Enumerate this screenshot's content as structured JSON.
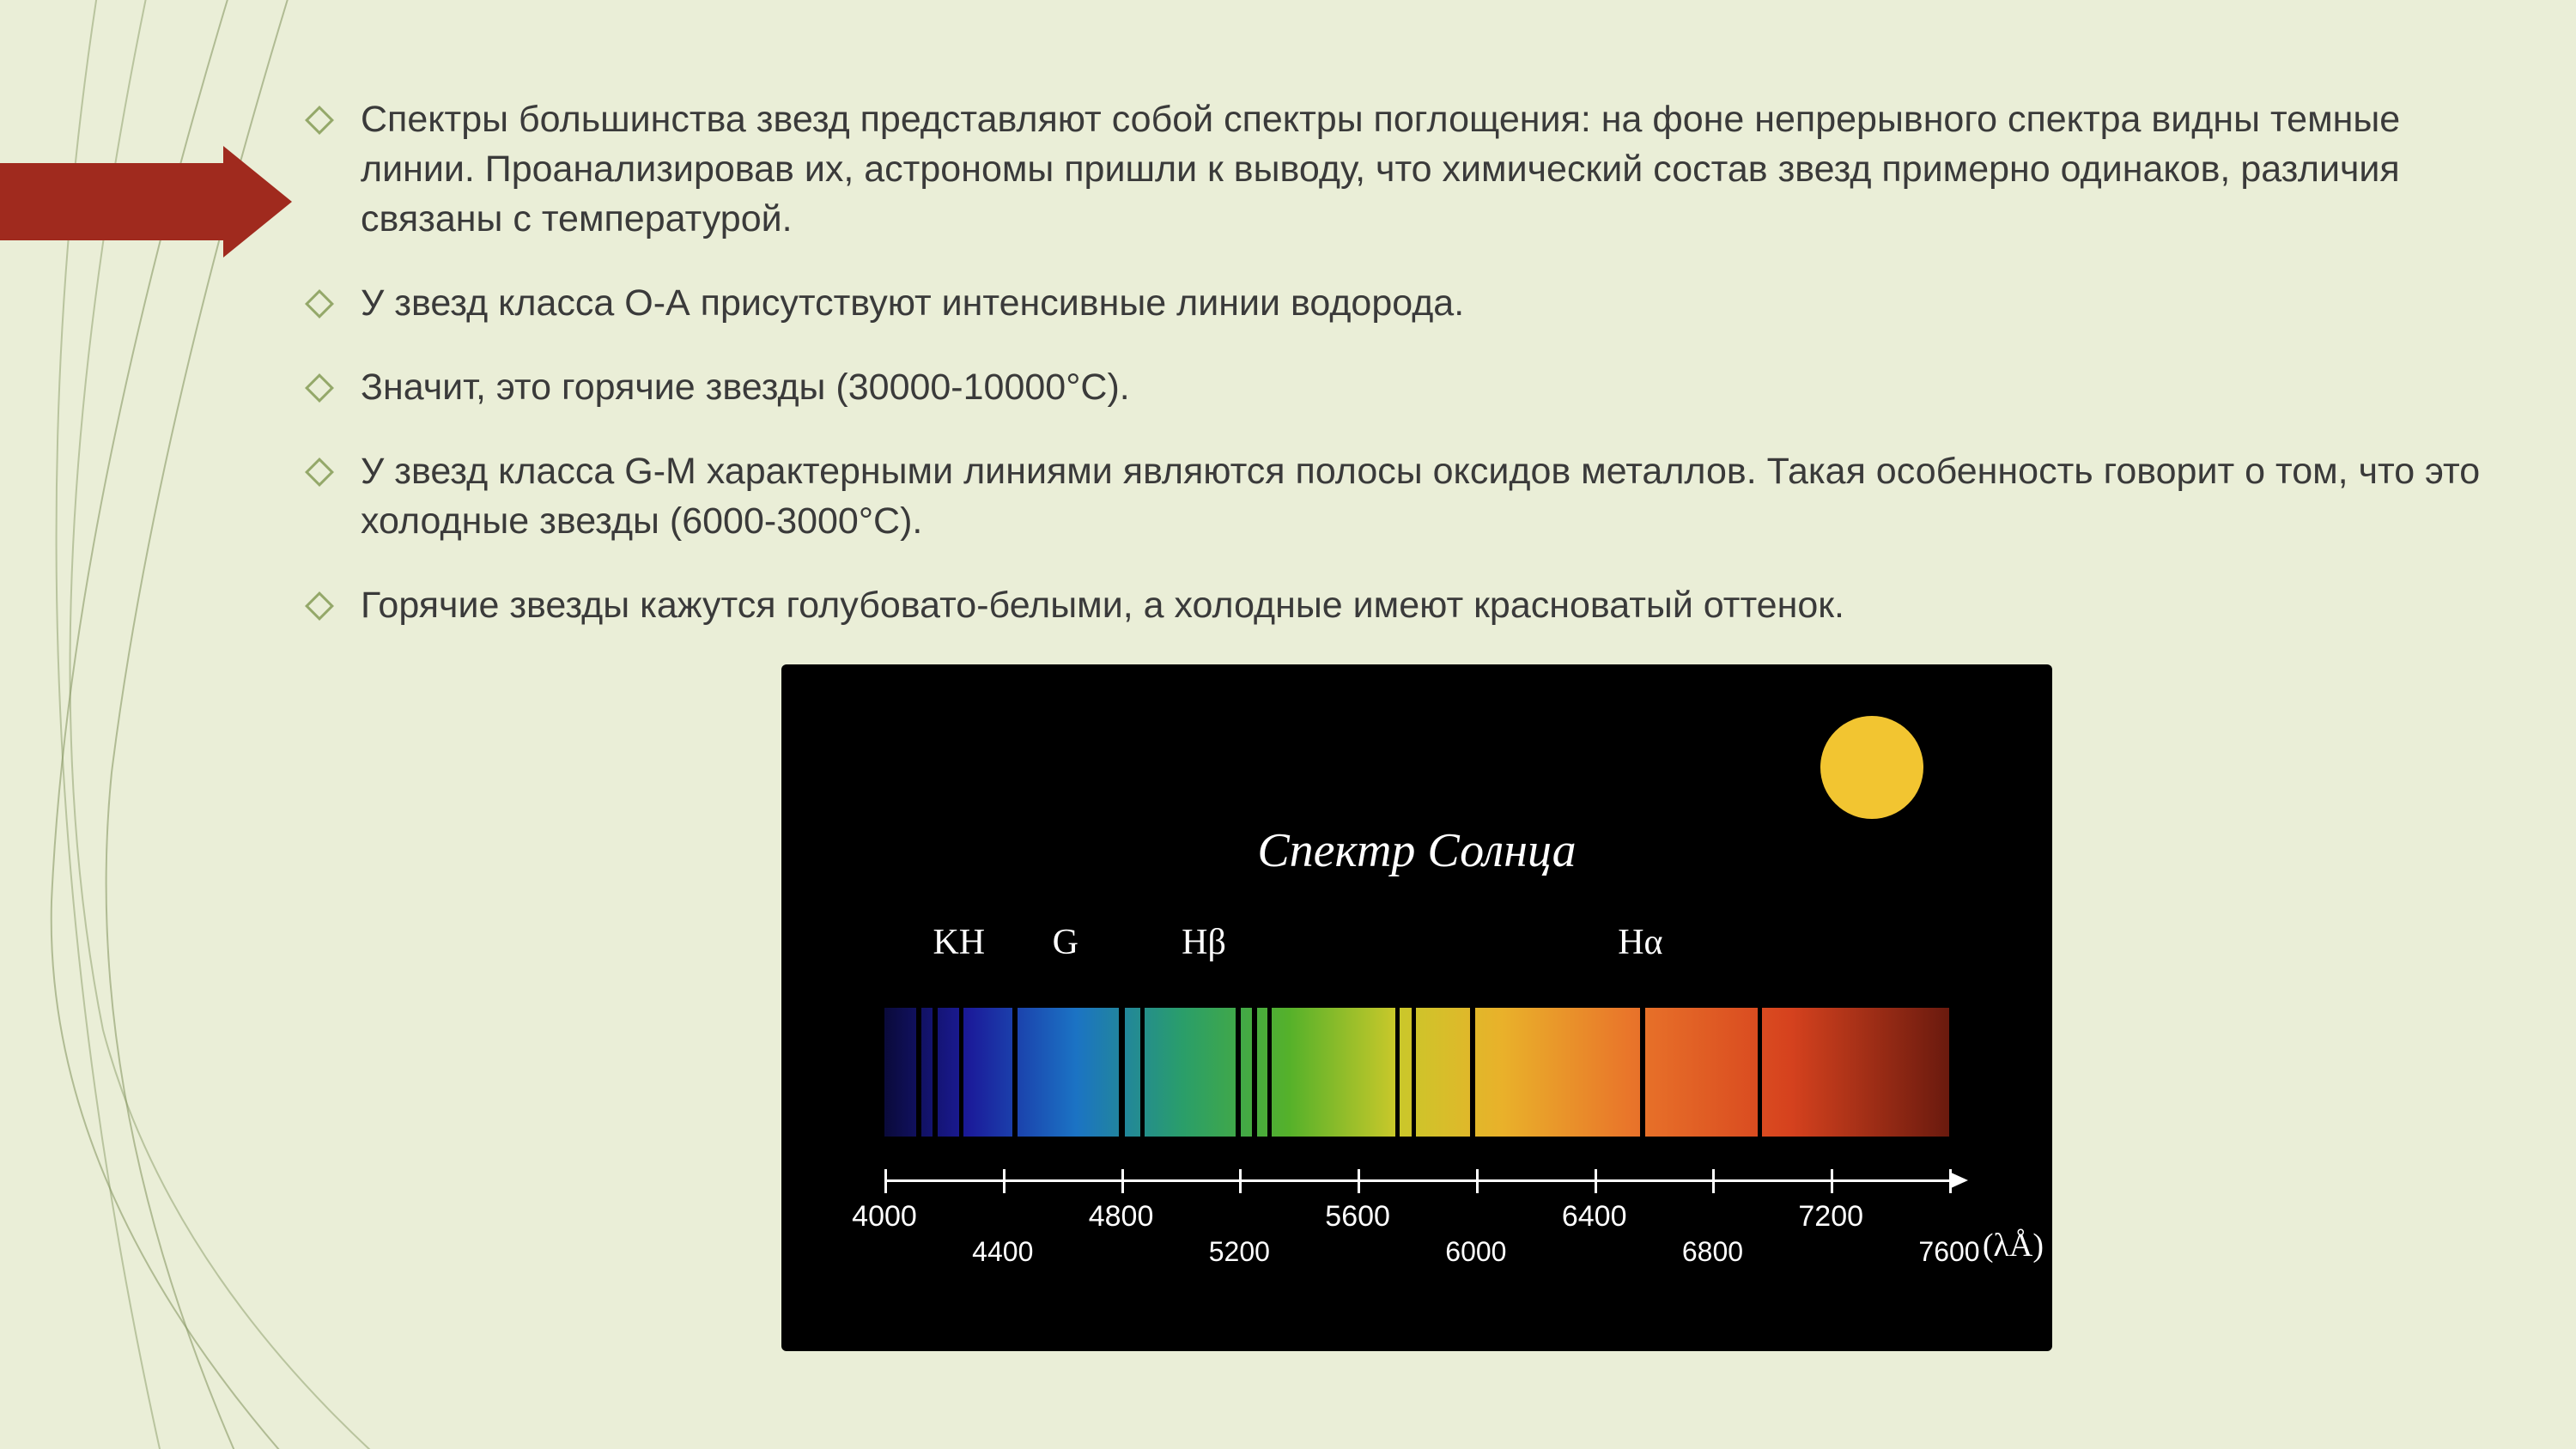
{
  "bullets": [
    "Спектры большинства звезд представляют собой спектры поглощения: на фоне непрерывного спектра видны темные линии. Проанализировав их, астрономы пришли к выводу, что химический состав звезд примерно одинаков, различия связаны с температурой.",
    "У звезд класса О-А присутствуют интенсивные линии водорода.",
    "Значит, это горячие звезды (30000-10000°C).",
    "У звезд класса G-M характерными линиями являются полосы оксидов металлов. Такая особенность говорит о том, что это холодные звезды (6000-3000°C).",
    " Горячие звезды кажутся голубовато-белыми, а холодные имеют красноватый оттенок."
  ],
  "arrow_color": "#a02a1e",
  "deco_line_color": "#889966",
  "figure": {
    "title": "Спектр Солнца",
    "sun_color": "#f2c531",
    "background": "#000000",
    "labels": [
      {
        "text": "KH",
        "pos_pct": 7
      },
      {
        "text": "G",
        "pos_pct": 17
      },
      {
        "text": "Hβ",
        "pos_pct": 30
      },
      {
        "text": "Hα",
        "pos_pct": 71
      }
    ],
    "gradient_stops": [
      {
        "pct": 0,
        "color": "#0a0a3a"
      },
      {
        "pct": 8,
        "color": "#1b1b9a"
      },
      {
        "pct": 18,
        "color": "#1b73c4"
      },
      {
        "pct": 28,
        "color": "#2a9e6a"
      },
      {
        "pct": 38,
        "color": "#55b12a"
      },
      {
        "pct": 48,
        "color": "#c9c82a"
      },
      {
        "pct": 58,
        "color": "#e9b12a"
      },
      {
        "pct": 70,
        "color": "#e9752a"
      },
      {
        "pct": 85,
        "color": "#d6421e"
      },
      {
        "pct": 100,
        "color": "#6a1a0e"
      }
    ],
    "absorption_lines": [
      {
        "pos_pct": 3,
        "width": 6
      },
      {
        "pos_pct": 4.5,
        "width": 6
      },
      {
        "pos_pct": 7,
        "width": 5
      },
      {
        "pos_pct": 12,
        "width": 6
      },
      {
        "pos_pct": 22,
        "width": 7
      },
      {
        "pos_pct": 24,
        "width": 5
      },
      {
        "pos_pct": 33,
        "width": 6
      },
      {
        "pos_pct": 34.5,
        "width": 6
      },
      {
        "pos_pct": 36,
        "width": 5
      },
      {
        "pos_pct": 48,
        "width": 5
      },
      {
        "pos_pct": 49.5,
        "width": 5
      },
      {
        "pos_pct": 55,
        "width": 6
      },
      {
        "pos_pct": 71,
        "width": 6
      },
      {
        "pos_pct": 82,
        "width": 5
      }
    ],
    "axis": {
      "min": 4000,
      "max": 7600,
      "major_ticks": [
        4000,
        4800,
        5600,
        6400,
        7200
      ],
      "minor_ticks": [
        4400,
        5200,
        6000,
        6800,
        7600
      ],
      "unit_label": "(λÅ)"
    }
  }
}
